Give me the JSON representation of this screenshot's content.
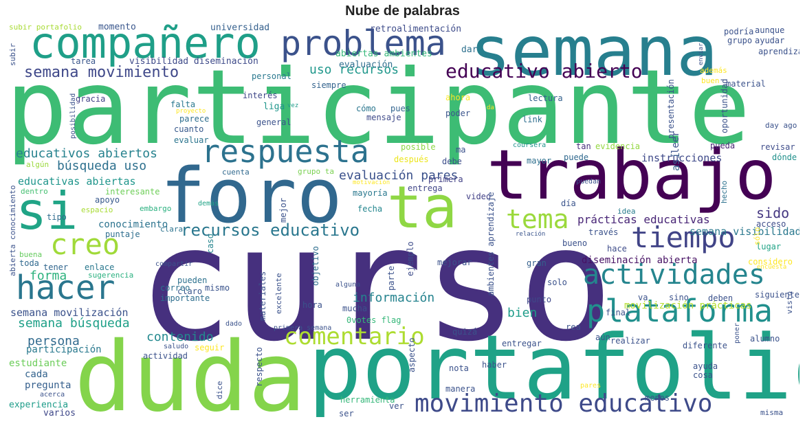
{
  "title": "Nube de palabras",
  "chart_data": {
    "type": "word-cloud",
    "title": "Nube de palabras",
    "words": [
      {
        "text": "participante",
        "color": "#3dbc74"
      },
      {
        "text": "curso",
        "color": "#46307e"
      },
      {
        "text": "duda",
        "color": "#84d44b"
      },
      {
        "text": "portafolio",
        "color": "#1fa287"
      },
      {
        "text": "semana",
        "color": "#277f8e"
      },
      {
        "text": "foro",
        "color": "#31688e"
      },
      {
        "text": "trabajo",
        "color": "#440154"
      },
      {
        "text": "ta",
        "color": "#8fd744"
      },
      {
        "text": "si",
        "color": "#20a486"
      },
      {
        "text": "compañero",
        "color": "#1f9f88"
      },
      {
        "text": "problema",
        "color": "#3b528b"
      },
      {
        "text": "respuesta",
        "color": "#2c728e"
      },
      {
        "text": "creo",
        "color": "#a0da39"
      },
      {
        "text": "tema",
        "color": "#9bd93c"
      },
      {
        "text": "tiempo",
        "color": "#414487"
      },
      {
        "text": "actividades",
        "color": "#25858e"
      },
      {
        "text": "hacer",
        "color": "#2a768e"
      },
      {
        "text": "plataforma",
        "color": "#21908d"
      },
      {
        "text": "comentario",
        "color": "#addc30"
      },
      {
        "text": "movimiento educativo",
        "color": "#3e4a89"
      },
      {
        "text": "educativo abierto",
        "color": "#440154"
      },
      {
        "text": "recursos educativo",
        "color": "#2a778e"
      },
      {
        "text": "semana movimiento",
        "color": "#3f4889"
      },
      {
        "text": "educativos abiertos",
        "color": "#26828e"
      },
      {
        "text": "evaluación pares",
        "color": "#3b518b"
      },
      {
        "text": "búsqueda uso",
        "color": "#2d708e"
      },
      {
        "text": "información",
        "color": "#25838e"
      },
      {
        "text": "semana búsqueda",
        "color": "#1fa088"
      },
      {
        "text": "contenido",
        "color": "#23898e"
      },
      {
        "text": "persona",
        "color": "#306a8e"
      },
      {
        "text": "forma",
        "color": "#2db27d"
      },
      {
        "text": "uso recursos",
        "color": "#1f978b"
      },
      {
        "text": "prácticas educativas",
        "color": "#482576"
      },
      {
        "text": "bien",
        "color": "#1e9c89"
      },
      {
        "text": "sido",
        "color": "#453781"
      },
      {
        "text": "así",
        "color": "#365d8d"
      },
      {
        "text": "leer",
        "color": "#3b518b"
      },
      {
        "text": "instrucciones",
        "color": "#3e4989"
      },
      {
        "text": "educativas abiertas",
        "color": "#1f958b"
      },
      {
        "text": "semana visibilidad",
        "color": "#2a788e"
      },
      {
        "text": "diseminación abierta",
        "color": "#471164"
      },
      {
        "text": "movilización prácticas",
        "color": "#b5de2b"
      },
      {
        "text": "semana movilización",
        "color": "#3b528b"
      },
      {
        "text": "conocimiento",
        "color": "#2c738e"
      },
      {
        "text": "participación",
        "color": "#29798e"
      },
      {
        "text": "estudiante",
        "color": "#6ccd5a"
      },
      {
        "text": "cada",
        "color": "#33638d"
      },
      {
        "text": "pregunta",
        "color": "#355f8d"
      },
      {
        "text": "experiencia",
        "color": "#1e9c89"
      },
      {
        "text": "varios",
        "color": "#3f4889"
      },
      {
        "text": "momento",
        "color": "#39568c"
      },
      {
        "text": "universidad",
        "color": "#35608d"
      },
      {
        "text": "retroalimentación",
        "color": "#3e4c8a"
      },
      {
        "text": "subir portafolio",
        "color": "#a8db34"
      },
      {
        "text": "tarea",
        "color": "#39568c"
      },
      {
        "text": "visibilidad diseminación",
        "color": "#3e4a89"
      },
      {
        "text": "abiertas ambientes",
        "color": "#35b779"
      },
      {
        "text": "evaluación",
        "color": "#2e6e8e"
      },
      {
        "text": "dar",
        "color": "#2d708e"
      },
      {
        "text": "personal",
        "color": "#2a788e"
      },
      {
        "text": "siempre",
        "color": "#33638d"
      },
      {
        "text": "gracia",
        "color": "#424186"
      },
      {
        "text": "falta",
        "color": "#2a788e"
      },
      {
        "text": "interés",
        "color": "#3f4788"
      },
      {
        "text": "liga",
        "color": "#1f968b"
      },
      {
        "text": "vez",
        "color": "#1e9b8a"
      },
      {
        "text": "ahora",
        "color": "#fde725"
      },
      {
        "text": "lectura",
        "color": "#34618d"
      },
      {
        "text": "parece",
        "color": "#2e6e8e"
      },
      {
        "text": "cómo",
        "color": "#2a768e"
      },
      {
        "text": "pues",
        "color": "#32648e"
      },
      {
        "text": "poder",
        "color": "#3a548c"
      },
      {
        "text": "link",
        "color": "#2e6e8e"
      },
      {
        "text": "general",
        "color": "#3b528b"
      },
      {
        "text": "mensaje",
        "color": "#3e4989"
      },
      {
        "text": "cuanto",
        "color": "#38598c"
      },
      {
        "text": "evaluar",
        "color": "#2b758e"
      },
      {
        "text": "posible",
        "color": "#8fd744"
      },
      {
        "text": "ma",
        "color": "#3b518b"
      },
      {
        "text": "coursera",
        "color": "#20928c"
      },
      {
        "text": "tan",
        "color": "#472d7b"
      },
      {
        "text": "evidencia",
        "color": "#93d741"
      },
      {
        "text": "pueda",
        "color": "#482475"
      },
      {
        "text": "revisar",
        "color": "#3e4c8a"
      },
      {
        "text": "dónde",
        "color": "#21918c"
      },
      {
        "text": "después",
        "color": "#ece51b"
      },
      {
        "text": "debe",
        "color": "#3d4e8a"
      },
      {
        "text": "mayor",
        "color": "#2e6f8e"
      },
      {
        "text": "puede",
        "color": "#30698e"
      },
      {
        "text": "algún",
        "color": "#9bd93c"
      },
      {
        "text": "cuenta",
        "color": "#30698e"
      },
      {
        "text": "grupo ta",
        "color": "#7ad151"
      },
      {
        "text": "primera",
        "color": "#424186"
      },
      {
        "text": "entrega",
        "color": "#404688"
      },
      {
        "text": "interesante",
        "color": "#6ece58"
      },
      {
        "text": "motivación",
        "color": "#fde725"
      },
      {
        "text": "dentro",
        "color": "#44bf70"
      },
      {
        "text": "mayoría",
        "color": "#2a788e"
      },
      {
        "text": "video",
        "color": "#424086"
      },
      {
        "text": "día",
        "color": "#3a548c"
      },
      {
        "text": "hecho",
        "color": "#2c718e"
      },
      {
        "text": "apoyo",
        "color": "#38598c"
      },
      {
        "text": "embargo",
        "color": "#2ab07f"
      },
      {
        "text": "demás",
        "color": "#20a386"
      },
      {
        "text": "espacio",
        "color": "#a8db34"
      },
      {
        "text": "fecha",
        "color": "#24868e"
      },
      {
        "text": "mejor",
        "color": "#3b528b"
      },
      {
        "text": "tipo",
        "color": "#2f6c8e"
      },
      {
        "text": "puntaje",
        "color": "#2e6e8e"
      },
      {
        "text": "clara",
        "color": "#2c738e"
      },
      {
        "text": "idea",
        "color": "#287c8e"
      },
      {
        "text": "acceso",
        "color": "#3e4c8a"
      },
      {
        "text": "relación",
        "color": "#3a548c"
      },
      {
        "text": "través",
        "color": "#3b528b"
      },
      {
        "text": "hace",
        "color": "#3e4c8a"
      },
      {
        "text": "bueno",
        "color": "#3b518b"
      },
      {
        "text": "lugar",
        "color": "#20a386"
      },
      {
        "text": "buena",
        "color": "#65cb5e"
      },
      {
        "text": "toda",
        "color": "#30698e"
      },
      {
        "text": "tener",
        "color": "#31668e"
      },
      {
        "text": "enlace",
        "color": "#2a788e"
      },
      {
        "text": "caso",
        "color": "#25858e"
      },
      {
        "text": "compartir",
        "color": "#3b528b"
      },
      {
        "text": "pueden",
        "color": "#2c718e"
      },
      {
        "text": "claro",
        "color": "#39568c"
      },
      {
        "text": "mismo",
        "color": "#3a548c"
      },
      {
        "text": "importante",
        "color": "#2e6e8e"
      },
      {
        "text": "correo",
        "color": "#2c718e"
      },
      {
        "text": "sugerencia",
        "color": "#2ab07f"
      },
      {
        "text": "materiales",
        "color": "#3b528b"
      },
      {
        "text": "excelente",
        "color": "#3b528b"
      },
      {
        "text": "objetivo",
        "color": "#2e6e8e"
      },
      {
        "text": "ejemplo",
        "color": "#3e4c8a"
      },
      {
        "text": "parte",
        "color": "#3b528b"
      },
      {
        "text": "mejorar",
        "color": "#3b528b"
      },
      {
        "text": "gran",
        "color": "#35608d"
      },
      {
        "text": "solo",
        "color": "#3b528b"
      },
      {
        "text": "punto",
        "color": "#3f4889"
      },
      {
        "text": "va",
        "color": "#3b528b"
      },
      {
        "text": "sino",
        "color": "#3b528b"
      },
      {
        "text": "deben",
        "color": "#3b528b"
      },
      {
        "text": "siguiente",
        "color": "#3b528b"
      },
      {
        "text": "hora",
        "color": "#3b528b"
      },
      {
        "text": "mucha",
        "color": "#3b528b"
      },
      {
        "text": "0votes flag",
        "color": "#35b779"
      },
      {
        "text": "quizá",
        "color": "#3b528b"
      },
      {
        "text": "aún",
        "color": "#3b528b"
      },
      {
        "text": "realizar",
        "color": "#3b528b"
      },
      {
        "text": "diferente",
        "color": "#3b528b"
      },
      {
        "text": "ayuda",
        "color": "#3b528b"
      },
      {
        "text": "cosa",
        "color": "#3b528b"
      },
      {
        "text": "haber",
        "color": "#3b528b"
      },
      {
        "text": "nota",
        "color": "#3b528b"
      },
      {
        "text": "manera",
        "color": "#3b528b"
      },
      {
        "text": "menos",
        "color": "#3b528b"
      },
      {
        "text": "misma",
        "color": "#3b528b"
      },
      {
        "text": "herramienta",
        "color": "#35b779"
      },
      {
        "text": "ser",
        "color": "#3b528b"
      },
      {
        "text": "ver",
        "color": "#3b528b"
      },
      {
        "text": "respecto",
        "color": "#3b528b"
      },
      {
        "text": "dice",
        "color": "#3b528b"
      },
      {
        "text": "actividad",
        "color": "#3b528b"
      },
      {
        "text": "seguir",
        "color": "#fde725"
      },
      {
        "text": "saludo",
        "color": "#3b528b"
      },
      {
        "text": "primera semana",
        "color": "#3b528b"
      },
      {
        "text": "dado",
        "color": "#3b528b"
      },
      {
        "text": "acerca",
        "color": "#3b528b"
      },
      {
        "text": "entregar",
        "color": "#3b528b"
      },
      {
        "text": "alumno",
        "color": "#3b528b"
      },
      {
        "text": "considero",
        "color": "#fde725"
      },
      {
        "text": "rea",
        "color": "#3b528b"
      },
      {
        "text": "final",
        "color": "#3b528b"
      },
      {
        "text": "pares",
        "color": "#fde725"
      },
      {
        "text": "aspecto",
        "color": "#3b528b"
      },
      {
        "text": "alguna",
        "color": "#3b528b"
      },
      {
        "text": "podría",
        "color": "#3b528b"
      },
      {
        "text": "aunque",
        "color": "#3b528b"
      },
      {
        "text": "grupo",
        "color": "#3b528b"
      },
      {
        "text": "ayudar",
        "color": "#3b528b"
      },
      {
        "text": "aprendizaje",
        "color": "#3b528b"
      },
      {
        "text": "además",
        "color": "#fde725"
      },
      {
        "text": "buen",
        "color": "#fde725"
      },
      {
        "text": "material",
        "color": "#3b528b"
      },
      {
        "text": "enviar",
        "color": "#3b528b"
      },
      {
        "text": "oportunidad",
        "color": "#3b528b"
      },
      {
        "text": "day ago",
        "color": "#3b528b"
      },
      {
        "text": "presentación",
        "color": "#3b528b"
      },
      {
        "text": "proyecto",
        "color": "#fde725"
      },
      {
        "text": "posibilidad",
        "color": "#3b528b"
      },
      {
        "text": "da",
        "color": "#fde725"
      },
      {
        "text": "subir",
        "color": "#3b528b"
      },
      {
        "text": "puedan",
        "color": "#3b528b"
      },
      {
        "text": "abierta conocimiento",
        "color": "#3b528b"
      },
      {
        "text": "ambientes aprendizaje",
        "color": "#3b528b"
      },
      {
        "text": "encuesta",
        "color": "#fde725"
      },
      {
        "text": "visto",
        "color": "#3b528b"
      },
      {
        "text": "poner",
        "color": "#3b528b"
      },
      {
        "text": "sólo",
        "color": "#fde725"
      }
    ]
  }
}
